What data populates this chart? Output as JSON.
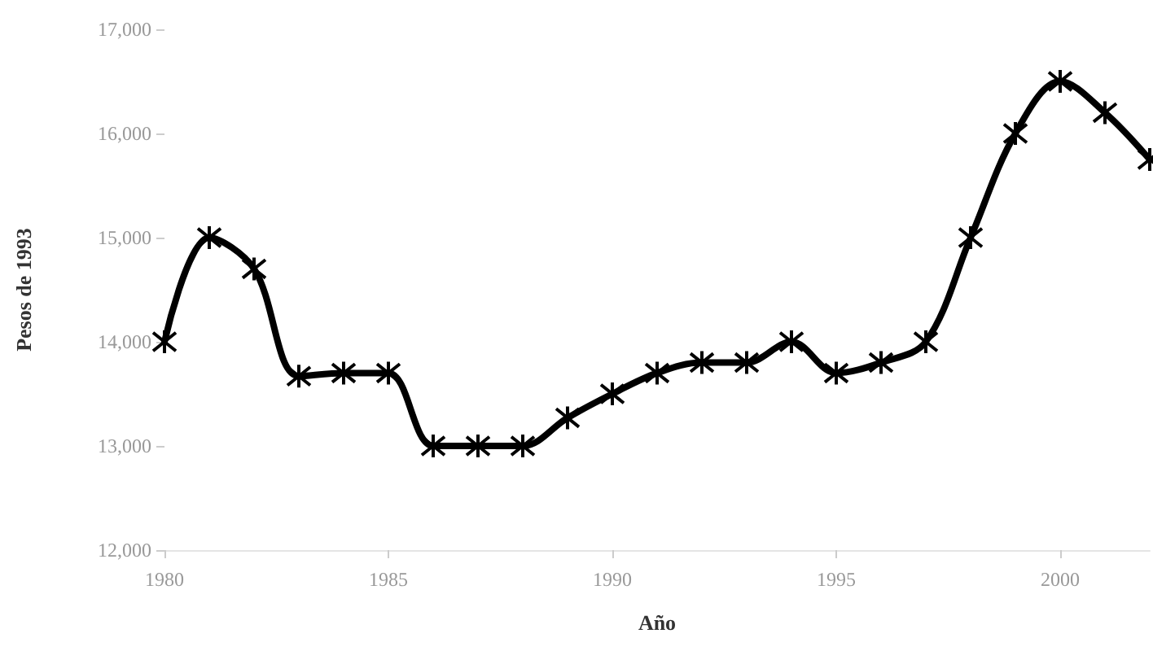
{
  "chart_data": {
    "type": "line",
    "xlabel": "Año",
    "ylabel": "Pesos de 1993",
    "x": [
      1980,
      1981,
      1982,
      1983,
      1984,
      1985,
      1986,
      1987,
      1988,
      1989,
      1990,
      1991,
      1992,
      1993,
      1994,
      1995,
      1996,
      1997,
      1998,
      1999,
      2000,
      2001,
      2002
    ],
    "series": [
      {
        "color": "#000000",
        "values": [
          14000,
          15000,
          14700,
          13670,
          13700,
          13700,
          13000,
          13000,
          13000,
          13270,
          13500,
          13700,
          13800,
          13800,
          14000,
          13700,
          13800,
          14000,
          15000,
          16000,
          16500,
          16200,
          15750
        ]
      }
    ],
    "xlim": [
      1980,
      2002
    ],
    "xticks": [
      1980,
      1985,
      1990,
      1995,
      2000
    ],
    "ylim": [
      12000,
      17000
    ],
    "yticks": [
      {
        "value": 12000,
        "label": "12,000"
      },
      {
        "value": 13000,
        "label": "13,000"
      },
      {
        "value": 14000,
        "label": "14,000"
      },
      {
        "value": 15000,
        "label": "15,000"
      },
      {
        "value": 16000,
        "label": "16,000"
      },
      {
        "value": 17000,
        "label": "17,000"
      }
    ],
    "grid": false,
    "marker": "cross",
    "line_style": "solid"
  }
}
